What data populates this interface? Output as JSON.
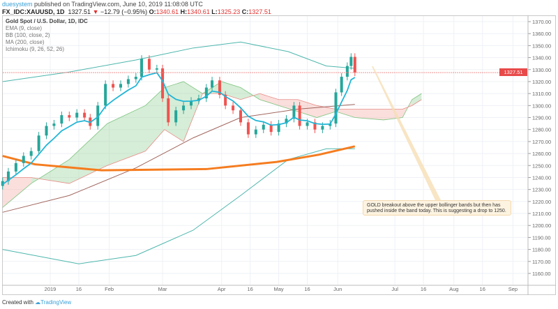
{
  "header": {
    "user": "duesystem",
    "published": "published on TradingView.com, June 10, 2019 11:08:08 UTC"
  },
  "symbol": {
    "ticker": "FX_IDC:XAUUSD, 1D",
    "last": "1327.51",
    "change": "−12.79 (−0.95%)",
    "o_label": "O:",
    "o": "1340.61",
    "h_label": "H:",
    "h": "1340.61",
    "l_label": "L:",
    "l": "1325.23",
    "c_label": "C:",
    "c": "1327.51"
  },
  "legend": [
    "Gold Spot / U.S. Dollar, 1D, IDC",
    "EMA (9, close)",
    "BB (100, close, 2)",
    "MA (200, close)",
    "Ichimoku (9, 26, 52, 26)"
  ],
  "annotation": "GOLD breakout above the upper bollinger bands but then has pushed inside the band today. This is suggesting a drop to 1250.",
  "footer": {
    "created": "Created with",
    "brand": "TradingView"
  },
  "colors": {
    "up": "#26a69a",
    "down": "#ef5350",
    "ema": "#21b5d6",
    "ma": "#f57c1f",
    "bb": "#4db6ac",
    "bbmid": "#a1665e",
    "cloud_up": "#a5d6a7",
    "cloud_down": "#f5b7b1"
  },
  "chart_data": {
    "type": "candlestick",
    "title": "Gold Spot / U.S. Dollar, 1D, IDC",
    "x_unit": "days since 2019-01-01",
    "ylim": [
      1153,
      1375
    ],
    "xlim": [
      -25,
      244
    ],
    "y_ticks": [
      1370,
      1360,
      1350,
      1340,
      1330,
      1320,
      1310,
      1300,
      1290,
      1280,
      1270,
      1260,
      1250,
      1240,
      1230,
      1220,
      1210,
      1200,
      1190,
      1180,
      1170,
      1160
    ],
    "x_ticks": [
      {
        "day": 0,
        "label": "2019"
      },
      {
        "day": 15,
        "label": "16"
      },
      {
        "day": 31,
        "label": "Feb"
      },
      {
        "day": 59,
        "label": "Mar"
      },
      {
        "day": 90,
        "label": "Apr"
      },
      {
        "day": 105,
        "label": "16"
      },
      {
        "day": 120,
        "label": "May"
      },
      {
        "day": 135,
        "label": "16"
      },
      {
        "day": 151,
        "label": "Jun"
      },
      {
        "day": 181,
        "label": "Jul"
      },
      {
        "day": 196,
        "label": "16"
      },
      {
        "day": 212,
        "label": "Aug"
      },
      {
        "day": 227,
        "label": "16"
      },
      {
        "day": 243,
        "label": "Sep"
      }
    ],
    "last_price": "1327.51",
    "closes": [
      [
        -25,
        1237
      ],
      [
        -22,
        1245
      ],
      [
        -18,
        1252
      ],
      [
        -14,
        1258
      ],
      [
        -10,
        1262
      ],
      [
        -6,
        1275
      ],
      [
        -2,
        1283
      ],
      [
        2,
        1285
      ],
      [
        6,
        1292
      ],
      [
        10,
        1290
      ],
      [
        14,
        1294
      ],
      [
        18,
        1290
      ],
      [
        21,
        1283
      ],
      [
        25,
        1300
      ],
      [
        29,
        1318
      ],
      [
        33,
        1315
      ],
      [
        37,
        1318
      ],
      [
        41,
        1322
      ],
      [
        45,
        1324
      ],
      [
        48,
        1339
      ],
      [
        52,
        1330
      ],
      [
        56,
        1331
      ],
      [
        59,
        1306
      ],
      [
        62,
        1286
      ],
      [
        66,
        1296
      ],
      [
        70,
        1300
      ],
      [
        74,
        1304
      ],
      [
        78,
        1306
      ],
      [
        82,
        1315
      ],
      [
        85,
        1321
      ],
      [
        89,
        1309
      ],
      [
        92,
        1300
      ],
      [
        96,
        1296
      ],
      [
        100,
        1286
      ],
      [
        104,
        1276
      ],
      [
        108,
        1280
      ],
      [
        112,
        1284
      ],
      [
        116,
        1278
      ],
      [
        120,
        1285
      ],
      [
        124,
        1289
      ],
      [
        128,
        1300
      ],
      [
        131,
        1283
      ],
      [
        135,
        1286
      ],
      [
        139,
        1280
      ],
      [
        143,
        1283
      ],
      [
        147,
        1285
      ],
      [
        150,
        1311
      ],
      [
        153,
        1324
      ],
      [
        156,
        1333
      ],
      [
        158,
        1340.61
      ],
      [
        160,
        1327.51
      ]
    ],
    "bb_upper": [
      [
        -25,
        1320
      ],
      [
        10,
        1328
      ],
      [
        45,
        1338
      ],
      [
        75,
        1348
      ],
      [
        100,
        1353
      ],
      [
        125,
        1345
      ],
      [
        145,
        1333
      ],
      [
        160,
        1331
      ]
    ],
    "bb_middle": [
      [
        -25,
        1211
      ],
      [
        10,
        1225
      ],
      [
        45,
        1248
      ],
      [
        75,
        1273
      ],
      [
        100,
        1290
      ],
      [
        130,
        1297
      ],
      [
        160,
        1301
      ]
    ],
    "bb_lower": [
      [
        -25,
        1180
      ],
      [
        15,
        1168
      ],
      [
        45,
        1175
      ],
      [
        75,
        1196
      ],
      [
        100,
        1225
      ],
      [
        125,
        1255
      ],
      [
        145,
        1264
      ],
      [
        160,
        1264
      ]
    ],
    "ma200": [
      [
        -25,
        1258
      ],
      [
        -8,
        1251
      ],
      [
        27,
        1246
      ],
      [
        82,
        1247
      ],
      [
        119,
        1253
      ],
      [
        141,
        1259
      ],
      [
        160,
        1266
      ]
    ],
    "span_a": [
      [
        -25,
        1215
      ],
      [
        -10,
        1235
      ],
      [
        10,
        1255
      ],
      [
        30,
        1285
      ],
      [
        50,
        1300
      ],
      [
        60,
        1315
      ],
      [
        70,
        1320
      ],
      [
        80,
        1310
      ],
      [
        90,
        1320
      ],
      [
        100,
        1315
      ],
      [
        110,
        1305
      ],
      [
        120,
        1300
      ],
      [
        130,
        1295
      ],
      [
        140,
        1290
      ],
      [
        150,
        1295
      ],
      [
        160,
        1290
      ],
      [
        175,
        1288
      ],
      [
        185,
        1290
      ],
      [
        190,
        1305
      ],
      [
        195,
        1310
      ]
    ],
    "span_b": [
      [
        -25,
        1240
      ],
      [
        -10,
        1240
      ],
      [
        10,
        1235
      ],
      [
        30,
        1250
      ],
      [
        50,
        1262
      ],
      [
        60,
        1280
      ],
      [
        70,
        1270
      ],
      [
        80,
        1310
      ],
      [
        90,
        1310
      ],
      [
        100,
        1305
      ],
      [
        110,
        1310
      ],
      [
        120,
        1305
      ],
      [
        130,
        1305
      ],
      [
        140,
        1300
      ],
      [
        150,
        1297
      ],
      [
        160,
        1297
      ],
      [
        175,
        1297
      ],
      [
        185,
        1297
      ],
      [
        190,
        1300
      ],
      [
        195,
        1305
      ]
    ]
  }
}
